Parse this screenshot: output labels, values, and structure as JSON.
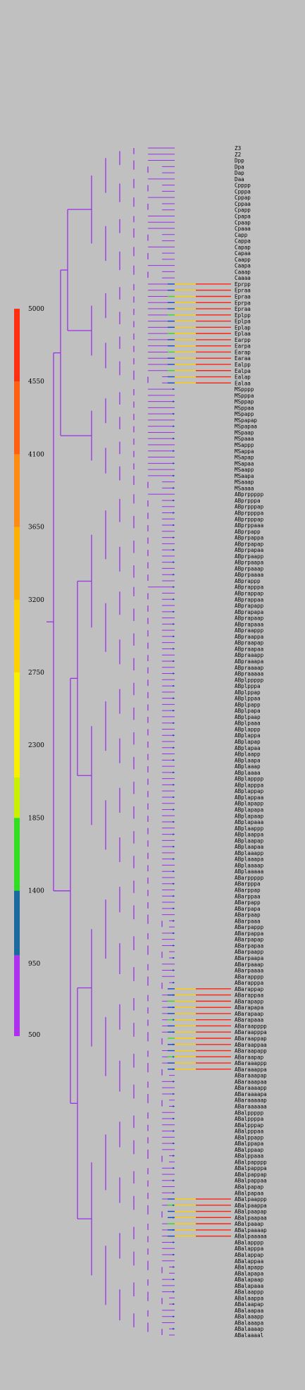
{
  "chart_data": {
    "type": "tree",
    "title": "",
    "colorbar": {
      "ticks": [
        5000,
        4550,
        4100,
        3650,
        3200,
        2750,
        2300,
        1850,
        1400,
        950,
        500
      ],
      "segments": [
        {
          "from": 500,
          "to": 1000,
          "color": "#b030f0"
        },
        {
          "from": 1000,
          "to": 1400,
          "color": "#1a6aa0"
        },
        {
          "from": 1400,
          "to": 1850,
          "color": "#30e020"
        },
        {
          "from": 1850,
          "to": 2100,
          "color": "#c8f000"
        },
        {
          "from": 2100,
          "to": 2750,
          "color": "#f8f000"
        },
        {
          "from": 2750,
          "to": 3200,
          "color": "#ffd000"
        },
        {
          "from": 3200,
          "to": 3650,
          "color": "#ffb000"
        },
        {
          "from": 3650,
          "to": 4100,
          "color": "#ff8c10"
        },
        {
          "from": 4100,
          "to": 4550,
          "color": "#ff6010"
        },
        {
          "from": 4550,
          "to": 5000,
          "color": "#ff3010"
        }
      ]
    },
    "leaves": [
      "Z3",
      "Z2",
      "Dpp",
      "Dpa",
      "Dap",
      "Daa",
      "Cpppp",
      "Cpppa",
      "Cppap",
      "Cppaa",
      "Cpapp",
      "Cpapa",
      "Cpaap",
      "Cpaaa",
      "Capp",
      "Cappa",
      "Capap",
      "Capaa",
      "Caapp",
      "Caapa",
      "Caaap",
      "Caaaa",
      "Eprpp",
      "Epraa",
      "Epraa",
      "Eprpa",
      "Epraa",
      "Eplpp",
      "Eplpa",
      "Eplap",
      "Eplaa",
      "Earpp",
      "Earpa",
      "Earap",
      "Earaa",
      "Ealpp",
      "Ealpa",
      "Ealap",
      "Ealaa",
      "MSpppp",
      "MSpppa",
      "MSppap",
      "MSppaa",
      "MSpapp",
      "MSpapap",
      "MSpapaa",
      "MSpaap",
      "MSpaaa",
      "MSappp",
      "MSappa",
      "MSapap",
      "MSapaa",
      "MSaapp",
      "MSaapa",
      "MSaaap",
      "MSaaaa",
      "ABprppppp",
      "ABprpppa",
      "ABprpppap",
      "ABprppppa",
      "ABprpppap",
      "ABprppaaa",
      "ABprpapp",
      "ABprpappa",
      "ABprpapap",
      "ABprpapaa",
      "ABprpaapp",
      "ABprpaapa",
      "ABprpaaap",
      "ABprpaaaa",
      "ABprappp",
      "ABprapppa",
      "ABprappap",
      "ABprappaa",
      "ABprapapp",
      "ABprapapa",
      "ABprapaap",
      "ABprapaaa",
      "ABpraappp",
      "ABpraappa",
      "ABpraapap",
      "ABpraapaa",
      "ABpraaapp",
      "ABpraaapa",
      "ABpraaaap",
      "ABpraaaaa",
      "ABplppppp",
      "ABplpppa",
      "ABplppap",
      "ABplppaa",
      "ABplpapp",
      "ABplpapa",
      "ABplpaap",
      "ABplpaaa",
      "ABplappp",
      "ABplappa",
      "ABplapap",
      "ABplapaa",
      "ABplaapp",
      "ABplaapa",
      "ABplaaap",
      "ABplaaaa",
      "ABplapppp",
      "ABplapppa",
      "ABplappap",
      "ABplappaa",
      "ABplapapp",
      "ABplapapa",
      "ABplapaap",
      "ABplapaaa",
      "ABplaappp",
      "ABplaappa",
      "ABplaapap",
      "ABplaapaa",
      "ABplaaapp",
      "ABplaaapa",
      "ABplaaaap",
      "ABplaaaaa",
      "ABarppppp",
      "ABarpppa",
      "ABarppap",
      "ABarppaa",
      "ABarpapp",
      "ABarpapa",
      "ABarpaap",
      "ABarpaaa",
      "ABarpappp",
      "ABarpappa",
      "ABarpapap",
      "ABarpapaa",
      "ABarpaapp",
      "ABarpaapa",
      "ABarpaaap",
      "ABarpaaaa",
      "ABarapppp",
      "ABarapppa",
      "ABarappap",
      "ABarappaa",
      "ABarapapp",
      "ABarapapa",
      "ABarapaap",
      "ABarapaaa",
      "ABaraapppp",
      "ABaraapppa",
      "ABaraappap",
      "ABaraappaa",
      "ABaraapapp",
      "ABaraapap",
      "ABaraaappp",
      "ABaraaappa",
      "ABaraaapap",
      "ABaraaapaa",
      "ABaraaaapp",
      "ABaraaaapa",
      "ABaraaaaap",
      "ABaraaaaaa",
      "ABalppppp",
      "ABalppppa",
      "ABalpppap",
      "ABalpppaa",
      "ABalppapp",
      "ABalppapa",
      "ABalppaap",
      "ABalppaaa",
      "ABalpapppp",
      "ABalpapppa",
      "ABalpappap",
      "ABalpappaa",
      "ABalpapap",
      "ABalpapaa",
      "ABalpaappp",
      "ABalpaappa",
      "ABalpaapap",
      "ABalpaapaa",
      "ABalpaaap",
      "ABalpaaaap",
      "ABalpaaaaa",
      "ABalapppp",
      "ABalapppa",
      "ABalappap",
      "ABalappaa",
      "ABalapapp",
      "ABalapapa",
      "ABalapaap",
      "ABalapaaa",
      "ABalaappp",
      "ABalaappa",
      "ABalaapap",
      "ABalaapaa",
      "ABalaaapp",
      "ABalaaapa",
      "ABalaaaap",
      "ABalaaaal"
    ]
  }
}
